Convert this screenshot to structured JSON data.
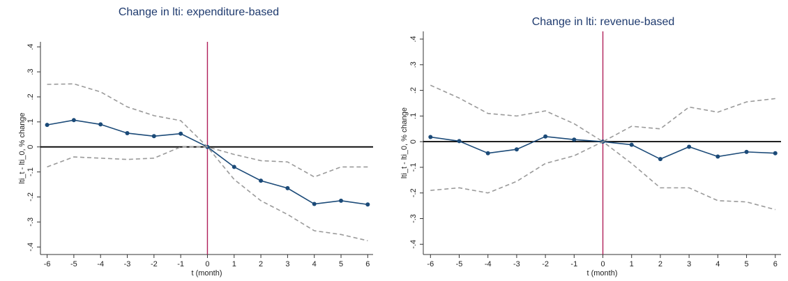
{
  "chart_data": [
    {
      "type": "line",
      "title": "Change in lti: expenditure-based",
      "xlabel": "t (month)",
      "ylabel": "lti_t - lti_0, % change",
      "x": [
        -6,
        -5,
        -4,
        -3,
        -2,
        -1,
        0,
        1,
        2,
        3,
        4,
        5,
        6
      ],
      "series": [
        {
          "color": "#1b4a78",
          "markers": true,
          "dash": false,
          "values": [
            0.088,
            0.107,
            0.09,
            0.055,
            0.043,
            0.053,
            0,
            -0.08,
            -0.135,
            -0.165,
            -0.228,
            -0.215,
            -0.23
          ]
        },
        {
          "color": "#9a9a9a",
          "markers": false,
          "dash": true,
          "values": [
            0.25,
            0.252,
            0.22,
            0.16,
            0.125,
            0.105,
            0,
            -0.03,
            -0.055,
            -0.06,
            -0.12,
            -0.08,
            -0.08
          ]
        },
        {
          "color": "#9a9a9a",
          "markers": false,
          "dash": true,
          "values": [
            -0.08,
            -0.04,
            -0.045,
            -0.05,
            -0.045,
            0,
            0,
            -0.13,
            -0.215,
            -0.27,
            -0.335,
            -0.35,
            -0.375
          ]
        }
      ],
      "xlim": [
        -6.25,
        6.2
      ],
      "ylim": [
        -0.43,
        0.42
      ],
      "xticks": [
        -6,
        -5,
        -4,
        -3,
        -2,
        -1,
        0,
        1,
        2,
        3,
        4,
        5,
        6
      ],
      "yticks": [
        {
          "value": -0.4,
          "label": "-.4"
        },
        {
          "value": -0.3,
          "label": "-.3"
        },
        {
          "value": -0.2,
          "label": "-.2"
        },
        {
          "value": -0.1,
          "label": "-.1"
        },
        0,
        {
          "value": 0.1,
          "label": ".1"
        },
        {
          "value": 0.2,
          "label": ".2"
        },
        {
          "value": 0.3,
          "label": ".3"
        },
        {
          "value": 0.4,
          "label": ".4"
        }
      ],
      "xline": 0,
      "xline_color": "#b0205a",
      "yline": 0,
      "yline_color": "#000000"
    },
    {
      "type": "line",
      "title": "Change in lti: revenue-based",
      "xlabel": "t (month)",
      "ylabel": "lti_t - lti_0, % change",
      "x": [
        -6,
        -5,
        -4,
        -3,
        -2,
        -1,
        0,
        1,
        2,
        3,
        4,
        5,
        6
      ],
      "series": [
        {
          "color": "#1b4a78",
          "markers": true,
          "dash": false,
          "values": [
            0.018,
            0.002,
            -0.045,
            -0.03,
            0.02,
            0.008,
            0,
            -0.012,
            -0.068,
            -0.02,
            -0.058,
            -0.04,
            -0.045
          ]
        },
        {
          "color": "#9a9a9a",
          "markers": false,
          "dash": true,
          "values": [
            0.22,
            0.17,
            0.11,
            0.1,
            0.12,
            0.07,
            0,
            0.06,
            0.05,
            0.135,
            0.115,
            0.155,
            0.168
          ]
        },
        {
          "color": "#9a9a9a",
          "markers": false,
          "dash": true,
          "values": [
            -0.19,
            -0.18,
            -0.2,
            -0.155,
            -0.085,
            -0.055,
            0,
            -0.085,
            -0.18,
            -0.18,
            -0.23,
            -0.235,
            -0.265
          ]
        }
      ],
      "xlim": [
        -6.25,
        6.2
      ],
      "ylim": [
        -0.44,
        0.43
      ],
      "xticks": [
        -6,
        -5,
        -4,
        -3,
        -2,
        -1,
        0,
        1,
        2,
        3,
        4,
        5,
        6
      ],
      "yticks": [
        {
          "value": -0.4,
          "label": "-.4"
        },
        {
          "value": -0.3,
          "label": "-.3"
        },
        {
          "value": -0.2,
          "label": "-.2"
        },
        {
          "value": -0.1,
          "label": "-.1"
        },
        0,
        {
          "value": 0.1,
          "label": ".1"
        },
        {
          "value": 0.2,
          "label": ".2"
        },
        {
          "value": 0.3,
          "label": ".3"
        },
        {
          "value": 0.4,
          "label": ".4"
        }
      ],
      "xline": 0,
      "xline_color": "#b0205a",
      "yline": 0,
      "yline_color": "#000000"
    }
  ]
}
